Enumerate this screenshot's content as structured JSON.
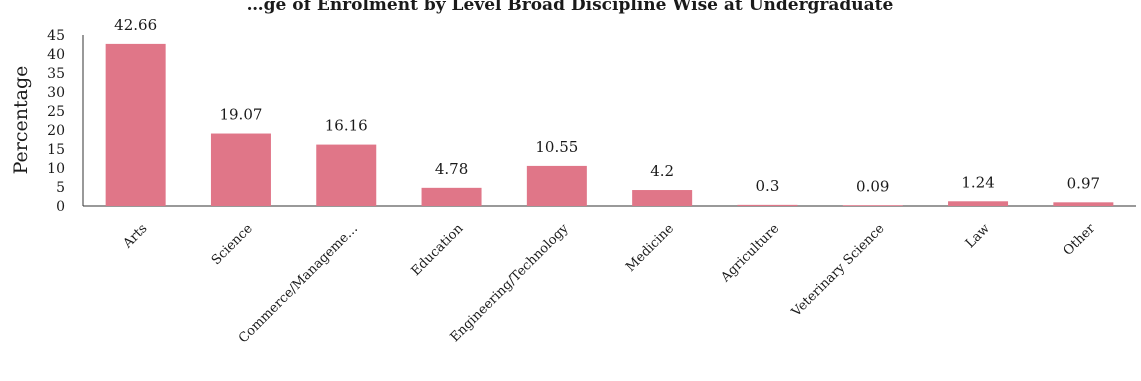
{
  "chart_data": {
    "type": "bar",
    "title": "…ge of Enrolment by Level Broad Discipline Wise at Undergraduate",
    "xlabel": "",
    "ylabel": "Percentage",
    "ylim": [
      0,
      45
    ],
    "yticks": [
      0,
      5,
      10,
      15,
      20,
      25,
      30,
      35,
      40,
      45
    ],
    "grid": false,
    "legend": "none",
    "bar_color": "#e07688",
    "categories": [
      "Arts",
      "Science",
      "Commerce/Manageme…",
      "Education",
      "Engineering/Technology",
      "Medicine",
      "Agriculture",
      "Veterinary Science",
      "Law",
      "Other"
    ],
    "values": [
      42.66,
      19.07,
      16.16,
      4.78,
      10.55,
      4.2,
      0.3,
      0.09,
      1.24,
      0.97
    ],
    "data_labels": [
      "42.66",
      "19.07",
      "16.16",
      "4.78",
      "10.55",
      "4.2",
      "0.3",
      "0.09",
      "1.24",
      "0.97"
    ]
  }
}
